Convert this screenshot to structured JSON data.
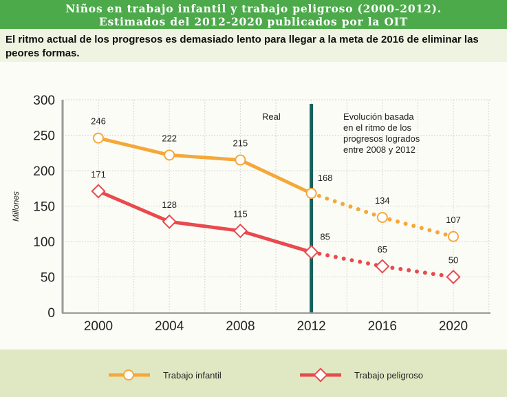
{
  "title_line1": "Niños en trabajo infantil y trabajo peligroso (2000-2012).",
  "title_line2": "Estimados del 2012-2020 publicados por la OIT",
  "subtitle": "El ritmo actual de los progresos es demasiado lento para llegar a la meta de 2016 de eliminar las peores formas.",
  "chart_data": {
    "type": "line",
    "x": [
      2000,
      2004,
      2008,
      2012,
      2016,
      2020
    ],
    "ylabel": "Millones",
    "ylim": [
      0,
      300
    ],
    "yticks": [
      0,
      50,
      100,
      150,
      200,
      250,
      300
    ],
    "grid": true,
    "divider_year": 2012,
    "annotations": {
      "left": "Real",
      "right": [
        "Evolución basada",
        "en el ritmo de los",
        "progresos logrados",
        "entre 2008 y 2012"
      ]
    },
    "legend_position": "bottom",
    "series": [
      {
        "name": "Trabajo infantil",
        "values": [
          246,
          222,
          215,
          168,
          134,
          107
        ],
        "color": "#f5a83a",
        "marker": "circle",
        "projected_from": 2012
      },
      {
        "name": "Trabajo peligroso",
        "values": [
          171,
          128,
          115,
          85,
          65,
          50
        ],
        "color": "#e84a4e",
        "marker": "diamond",
        "projected_from": 2012
      }
    ]
  }
}
